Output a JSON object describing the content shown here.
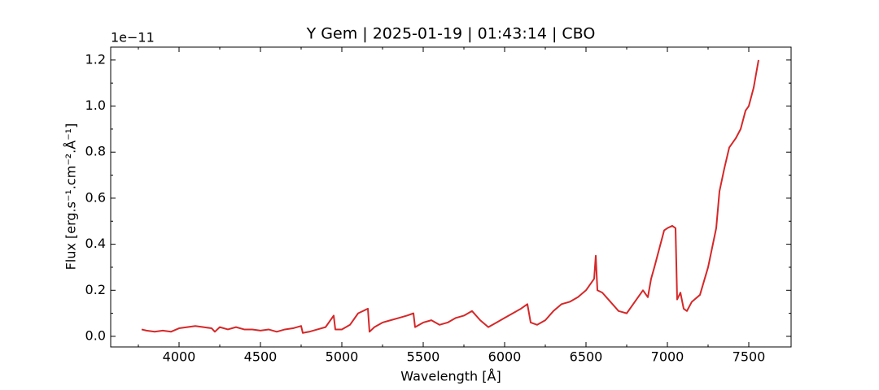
{
  "chart_data": {
    "type": "line",
    "title": "Y Gem | 2025-01-19 | 01:43:14 | CBO",
    "x_label": "Wavelength [Å]",
    "y_label": "Flux [erg.s⁻¹.cm⁻².Å⁻¹]",
    "y_offset_label": "1e−11",
    "x": [
      3770,
      3800,
      3850,
      3900,
      3950,
      4000,
      4050,
      4100,
      4150,
      4200,
      4220,
      4250,
      4300,
      4350,
      4400,
      4450,
      4500,
      4550,
      4600,
      4650,
      4700,
      4750,
      4760,
      4800,
      4850,
      4900,
      4950,
      4960,
      5000,
      5050,
      5100,
      5160,
      5170,
      5200,
      5250,
      5300,
      5350,
      5400,
      5440,
      5450,
      5500,
      5550,
      5600,
      5650,
      5700,
      5750,
      5800,
      5850,
      5900,
      5950,
      6000,
      6050,
      6100,
      6140,
      6160,
      6200,
      6250,
      6300,
      6350,
      6400,
      6450,
      6500,
      6550,
      6560,
      6570,
      6600,
      6650,
      6700,
      6750,
      6800,
      6850,
      6880,
      6900,
      6920,
      6950,
      6980,
      7000,
      7030,
      7050,
      7060,
      7080,
      7100,
      7120,
      7150,
      7200,
      7250,
      7300,
      7320,
      7350,
      7380,
      7420,
      7450,
      7480,
      7500,
      7530,
      7560
    ],
    "series": [
      {
        "name": "Y Gem",
        "color": "#d62728",
        "values": [
          0.03,
          0.025,
          0.02,
          0.025,
          0.02,
          0.035,
          0.04,
          0.045,
          0.04,
          0.035,
          0.02,
          0.04,
          0.03,
          0.04,
          0.03,
          0.03,
          0.025,
          0.03,
          0.02,
          0.03,
          0.035,
          0.045,
          0.015,
          0.02,
          0.03,
          0.04,
          0.09,
          0.03,
          0.03,
          0.05,
          0.1,
          0.12,
          0.02,
          0.04,
          0.06,
          0.07,
          0.08,
          0.09,
          0.1,
          0.04,
          0.06,
          0.07,
          0.05,
          0.06,
          0.08,
          0.09,
          0.11,
          0.07,
          0.04,
          0.06,
          0.08,
          0.1,
          0.12,
          0.14,
          0.06,
          0.05,
          0.07,
          0.11,
          0.14,
          0.15,
          0.17,
          0.2,
          0.25,
          0.35,
          0.2,
          0.19,
          0.15,
          0.11,
          0.1,
          0.15,
          0.2,
          0.17,
          0.25,
          0.3,
          0.38,
          0.46,
          0.47,
          0.48,
          0.47,
          0.16,
          0.19,
          0.12,
          0.11,
          0.15,
          0.18,
          0.3,
          0.47,
          0.63,
          0.73,
          0.82,
          0.86,
          0.9,
          0.98,
          1.0,
          1.08,
          1.2
        ]
      }
    ],
    "xlim": [
      3580,
      7760
    ],
    "ylim": [
      -0.046,
      1.256
    ],
    "xticks": [
      4000,
      4500,
      5000,
      5500,
      6000,
      6500,
      7000,
      7500
    ],
    "xminorticks": [
      3750,
      4250,
      4750,
      5250,
      5750,
      6250,
      6750,
      7250
    ],
    "yticks": [
      {
        "value": 0,
        "label": "0.0"
      },
      {
        "value": 0.2,
        "label": "0.2"
      },
      {
        "value": 0.4,
        "label": "0.4"
      },
      {
        "value": 0.6,
        "label": "0.6"
      },
      {
        "value": 0.8,
        "label": "0.8"
      },
      {
        "value": 1,
        "label": "1.0"
      },
      {
        "value": 1.2,
        "label": "1.2"
      }
    ],
    "yminorticks": [
      0.1,
      0.3,
      0.5,
      0.7,
      0.9,
      1.1
    ],
    "grid": false
  }
}
